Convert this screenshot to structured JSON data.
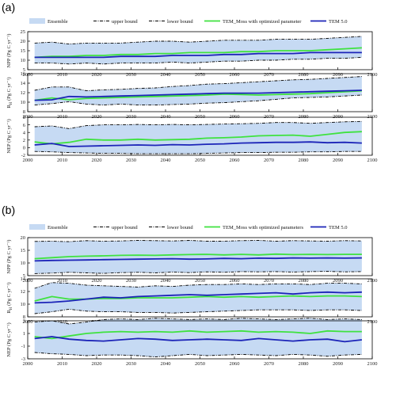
{
  "colors": {
    "ensemble_fill": "#c6daf3",
    "bound_line": "#000000",
    "moss_line": "#3fe23f",
    "tem_line": "#1c24b8",
    "axis": "#000000"
  },
  "x_axis": {
    "ticks": [
      "2000",
      "2010",
      "2020",
      "2030",
      "2040",
      "2050",
      "2060",
      "2070",
      "2080",
      "2090",
      "2100"
    ],
    "range": [
      2000,
      2100
    ]
  },
  "panel_groups": [
    {
      "label": "(a)",
      "legend": [
        "Ensemble",
        "upper bound",
        "lower bound",
        "TEM_Moss with optimized parameter",
        "TEM 5.0"
      ]
    },
    {
      "label": "(b)",
      "legend": [
        "Ensemble",
        "upper bound",
        "lower bound",
        "TEM_Moss with optimized parameters",
        "TEM 5.0"
      ]
    }
  ],
  "chart_data": [
    {
      "type": "area",
      "group": "(a)",
      "ylabel": "NPP (Pg C yr⁻¹)",
      "ylim": [
        5,
        25
      ],
      "yticks": [
        "5",
        "10",
        "15",
        "20",
        "25"
      ],
      "x": [
        2002,
        2007,
        2012,
        2017,
        2022,
        2027,
        2032,
        2037,
        2042,
        2047,
        2052,
        2057,
        2062,
        2067,
        2072,
        2077,
        2082,
        2087,
        2092,
        2097
      ],
      "series": [
        {
          "name": "upper bound",
          "values": [
            19,
            19.5,
            18.5,
            19,
            19,
            19,
            19.5,
            20,
            20,
            19.5,
            20,
            20.5,
            20.5,
            20.5,
            21,
            21,
            21,
            21.5,
            22,
            22.5
          ]
        },
        {
          "name": "lower bound",
          "values": [
            8.5,
            8.5,
            8,
            8.5,
            8,
            8.5,
            8.5,
            8.5,
            9,
            8.5,
            9,
            9.5,
            9.5,
            10,
            10,
            10.5,
            10.5,
            11,
            11,
            11.5
          ]
        },
        {
          "name": "TEM_Moss with optimized parameter",
          "values": [
            11.5,
            12,
            12,
            12.5,
            12.5,
            13,
            13,
            13.5,
            13.5,
            14,
            14,
            14,
            14.5,
            14.5,
            15,
            15,
            15,
            15.5,
            16,
            16.5
          ]
        },
        {
          "name": "TEM 5.0",
          "values": [
            11.5,
            11.5,
            11.5,
            11.5,
            11.5,
            12,
            12,
            12,
            12.5,
            12.5,
            12.5,
            13,
            13,
            13.5,
            13.5,
            13.5,
            14,
            14,
            14,
            14
          ]
        }
      ]
    },
    {
      "type": "area",
      "group": "(a)",
      "ylabel": "R_H (Pg C yr⁻¹)",
      "ylim": [
        8,
        16
      ],
      "yticks": [
        "8",
        "10",
        "12",
        "14",
        "16"
      ],
      "x": [
        2002,
        2007,
        2012,
        2017,
        2022,
        2027,
        2032,
        2037,
        2042,
        2047,
        2052,
        2057,
        2062,
        2067,
        2072,
        2077,
        2082,
        2087,
        2092,
        2097
      ],
      "series": [
        {
          "name": "upper bound",
          "values": [
            12.5,
            13.2,
            13.2,
            12.4,
            12.6,
            12.7,
            12.9,
            13.0,
            13.3,
            13.5,
            13.8,
            13.9,
            14.1,
            14.3,
            14.5,
            14.7,
            14.8,
            15.0,
            15.2,
            15.4
          ]
        },
        {
          "name": "lower bound",
          "values": [
            9.4,
            9.7,
            10.1,
            9.6,
            9.4,
            9.6,
            9.4,
            9.4,
            9.5,
            9.6,
            9.8,
            9.9,
            10.1,
            10.3,
            10.6,
            10.9,
            11.0,
            11.1,
            11.3,
            11.5
          ]
        },
        {
          "name": "TEM_Moss with optimized parameter",
          "values": [
            10.4,
            10.9,
            10.5,
            10.8,
            10.9,
            11.0,
            11.1,
            11.2,
            11.3,
            11.4,
            11.5,
            11.7,
            11.6,
            11.5,
            11.6,
            11.7,
            11.8,
            12.0,
            12.2,
            12.4
          ]
        },
        {
          "name": "TEM 5.0",
          "values": [
            10.4,
            10.5,
            11.2,
            11.1,
            11.2,
            11.3,
            11.4,
            11.5,
            11.6,
            11.7,
            11.8,
            11.9,
            11.9,
            11.9,
            12.0,
            12.1,
            12.2,
            12.3,
            12.4,
            12.5
          ]
        }
      ]
    },
    {
      "type": "area",
      "group": "(a)",
      "ylabel": "NEP (Pg C yr⁻¹)",
      "ylim": [
        -2,
        8
      ],
      "yticks": [
        "-2",
        "0",
        "2",
        "4",
        "6",
        "8"
      ],
      "x": [
        2002,
        2007,
        2012,
        2017,
        2022,
        2027,
        2032,
        2037,
        2042,
        2047,
        2052,
        2057,
        2062,
        2067,
        2072,
        2077,
        2082,
        2087,
        2092,
        2097
      ],
      "series": [
        {
          "name": "upper bound",
          "values": [
            5.5,
            5.7,
            5.0,
            5.8,
            6.0,
            6.0,
            6.1,
            6.0,
            6.1,
            6.0,
            6.1,
            6.2,
            6.3,
            6.4,
            6.6,
            6.6,
            6.4,
            6.6,
            6.8,
            6.9
          ]
        },
        {
          "name": "lower bound",
          "values": [
            -1.0,
            -1.1,
            -1.3,
            -1.4,
            -1.5,
            -1.5,
            -1.6,
            -1.6,
            -1.6,
            -1.6,
            -1.5,
            -1.4,
            -1.3,
            -1.3,
            -1.2,
            -1.2,
            -1.1,
            -1.1,
            -1.0,
            -1.0
          ]
        },
        {
          "name": "TEM_Moss with optimized parameter",
          "values": [
            1.5,
            1.0,
            1.4,
            2.2,
            2.0,
            2.0,
            2.2,
            2.0,
            2.1,
            2.2,
            2.5,
            2.6,
            2.8,
            3.1,
            3.2,
            3.3,
            3.0,
            3.5,
            4.0,
            4.2
          ]
        },
        {
          "name": "TEM 5.0",
          "values": [
            0.7,
            1.1,
            0.3,
            0.4,
            0.5,
            0.6,
            0.7,
            0.6,
            0.8,
            0.7,
            0.9,
            1.0,
            1.2,
            1.3,
            1.4,
            1.4,
            1.5,
            1.3,
            1.4,
            1.2
          ]
        }
      ]
    },
    {
      "type": "area",
      "group": "(b)",
      "ylabel": "NPP (Pg C yr⁻¹)",
      "ylim": [
        5,
        20
      ],
      "yticks": [
        "5",
        "10",
        "15",
        "20"
      ],
      "x": [
        2002,
        2007,
        2012,
        2017,
        2022,
        2027,
        2032,
        2037,
        2042,
        2047,
        2052,
        2057,
        2062,
        2067,
        2072,
        2077,
        2082,
        2087,
        2092,
        2097
      ],
      "series": [
        {
          "name": "upper bound",
          "values": [
            18.5,
            18.6,
            18.4,
            18.8,
            18.6,
            18.7,
            18.9,
            18.8,
            18.7,
            18.9,
            18.6,
            18.6,
            18.8,
            18.9,
            18.6,
            18.8,
            18.7,
            18.6,
            18.8,
            18.7
          ]
        },
        {
          "name": "lower bound",
          "values": [
            5.8,
            6.0,
            6.3,
            6.1,
            5.9,
            6.2,
            6.3,
            6.1,
            6.4,
            6.2,
            6.5,
            6.3,
            6.6,
            6.5,
            6.6,
            6.4,
            6.6,
            6.7,
            6.5,
            6.6
          ]
        },
        {
          "name": "TEM_Moss with optimized parameters",
          "values": [
            11.7,
            12.1,
            12.5,
            12.7,
            12.8,
            13.0,
            13.1,
            13.0,
            13.2,
            13.3,
            13.4,
            13.2,
            13.4,
            13.2,
            13.5,
            13.3,
            13.4,
            13.3,
            13.4,
            13.4
          ]
        },
        {
          "name": "TEM 5.0",
          "values": [
            10.8,
            11.0,
            11.1,
            11.2,
            11.3,
            11.4,
            11.5,
            11.6,
            11.7,
            11.5,
            11.6,
            11.8,
            11.7,
            11.9,
            11.8,
            12.0,
            11.9,
            12.0,
            11.9,
            12.0
          ]
        }
      ]
    },
    {
      "type": "area",
      "group": "(b)",
      "ylabel": "R_H (Pg C yr⁻¹)",
      "ylim": [
        8,
        14
      ],
      "yticks": [
        "8",
        "10",
        "12",
        "14"
      ],
      "x": [
        2002,
        2007,
        2012,
        2017,
        2022,
        2027,
        2032,
        2037,
        2042,
        2047,
        2052,
        2057,
        2062,
        2067,
        2072,
        2077,
        2082,
        2087,
        2092,
        2097
      ],
      "series": [
        {
          "name": "upper bound",
          "values": [
            12.5,
            13.4,
            13.3,
            13.0,
            12.9,
            12.8,
            12.7,
            12.9,
            12.8,
            13.0,
            13.1,
            13.1,
            13.2,
            13.1,
            13.2,
            13.2,
            13.1,
            13.3,
            13.3,
            13.2
          ]
        },
        {
          "name": "lower bound",
          "values": [
            8.5,
            8.8,
            9.2,
            8.9,
            8.8,
            8.8,
            8.7,
            8.7,
            8.6,
            8.7,
            8.8,
            8.9,
            9.0,
            9.1,
            9.1,
            9.1,
            9.0,
            9.1,
            9.1,
            9.0
          ]
        },
        {
          "name": "TEM_Moss with optimized parameters",
          "values": [
            10.5,
            11.2,
            10.8,
            10.8,
            10.9,
            10.9,
            11.0,
            11.0,
            11.0,
            11.1,
            11.2,
            11.1,
            11.2,
            11.1,
            11.2,
            11.3,
            11.2,
            11.3,
            11.3,
            11.2
          ]
        },
        {
          "name": "TEM 5.0",
          "values": [
            10.2,
            10.3,
            10.5,
            10.8,
            11.1,
            11.0,
            11.2,
            11.3,
            11.4,
            11.5,
            11.4,
            11.5,
            11.6,
            11.7,
            11.8,
            11.6,
            11.8,
            11.9,
            11.8,
            11.9
          ]
        }
      ]
    },
    {
      "type": "area",
      "group": "(b)",
      "ylabel": "NEP (Pg C yr⁻¹)",
      "ylim": [
        -3,
        3
      ],
      "yticks": [
        "-3",
        "-1",
        "1",
        "3"
      ],
      "x": [
        2002,
        2007,
        2012,
        2017,
        2022,
        2027,
        2032,
        2037,
        2042,
        2047,
        2052,
        2057,
        2062,
        2067,
        2072,
        2077,
        2082,
        2087,
        2092,
        2097
      ],
      "series": [
        {
          "name": "upper bound",
          "values": [
            2.8,
            3.0,
            2.5,
            2.8,
            3.2,
            3.3,
            3.2,
            3.4,
            3.3,
            3.2,
            3.3,
            3.2,
            3.4,
            3.3,
            3.2,
            3.3,
            3.4,
            3.2,
            3.3,
            3.2
          ]
        },
        {
          "name": "lower bound",
          "values": [
            -2.0,
            -2.2,
            -2.3,
            -2.5,
            -2.4,
            -2.4,
            -2.5,
            -2.7,
            -2.5,
            -2.3,
            -2.5,
            -2.4,
            -2.3,
            -2.4,
            -2.5,
            -2.3,
            -2.4,
            -2.6,
            -2.4,
            -2.3
          ]
        },
        {
          "name": "TEM_Moss with optimized parameters",
          "values": [
            0.5,
            0.2,
            0.6,
            1.0,
            1.2,
            1.3,
            1.2,
            1.3,
            1.2,
            1.4,
            1.2,
            1.3,
            1.4,
            1.2,
            1.3,
            1.2,
            1.0,
            1.4,
            1.3,
            1.3
          ]
        },
        {
          "name": "TEM 5.0",
          "values": [
            0.2,
            0.5,
            0.1,
            -0.1,
            -0.2,
            0.0,
            0.2,
            0.1,
            -0.1,
            0.0,
            0.1,
            0.0,
            -0.1,
            0.2,
            0.0,
            -0.2,
            0.0,
            0.1,
            -0.3,
            0.0
          ]
        }
      ]
    }
  ]
}
